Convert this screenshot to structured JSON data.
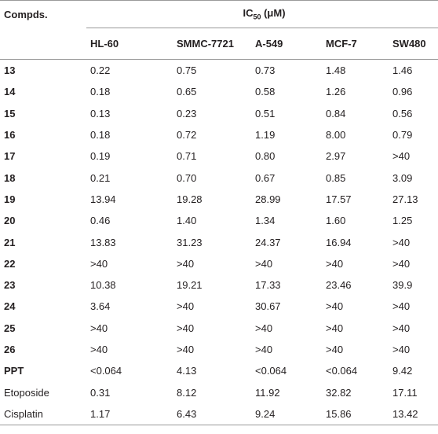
{
  "table": {
    "header": {
      "compounds": "Compds.",
      "ic50": {
        "prefix": "IC",
        "subscript": "50",
        "suffix": " (μM)"
      },
      "columns": [
        "HL-60",
        "SMMC-7721",
        "A-549",
        "MCF-7",
        "SW480"
      ]
    },
    "rows": [
      [
        "13",
        "0.22",
        "0.75",
        "0.73",
        "1.48",
        "1.46"
      ],
      [
        "14",
        "0.18",
        "0.65",
        "0.58",
        "1.26",
        "0.96"
      ],
      [
        "15",
        "0.13",
        "0.23",
        "0.51",
        "0.84",
        "0.56"
      ],
      [
        "16",
        "0.18",
        "0.72",
        "1.19",
        "8.00",
        "0.79"
      ],
      [
        "17",
        "0.19",
        "0.71",
        "0.80",
        "2.97",
        ">40"
      ],
      [
        "18",
        "0.21",
        "0.70",
        "0.67",
        "0.85",
        "3.09"
      ],
      [
        "19",
        "13.94",
        "19.28",
        "28.99",
        "17.57",
        "27.13"
      ],
      [
        "20",
        "0.46",
        "1.40",
        "1.34",
        "1.60",
        "1.25"
      ],
      [
        "21",
        "13.83",
        "31.23",
        "24.37",
        "16.94",
        ">40"
      ],
      [
        "22",
        ">40",
        ">40",
        ">40",
        ">40",
        ">40"
      ],
      [
        "23",
        "10.38",
        "19.21",
        "17.33",
        "23.46",
        "39.9"
      ],
      [
        "24",
        "3.64",
        ">40",
        "30.67",
        ">40",
        ">40"
      ],
      [
        "25",
        ">40",
        ">40",
        ">40",
        ">40",
        ">40"
      ],
      [
        "26",
        ">40",
        ">40",
        ">40",
        ">40",
        ">40"
      ],
      [
        "PPT",
        "<0.064",
        "4.13",
        "<0.064",
        "<0.064",
        "9.42"
      ],
      [
        "Etoposide",
        "0.31",
        "8.12",
        "11.92",
        "32.82",
        "17.11"
      ],
      [
        "Cisplatin",
        "1.17",
        "6.43",
        "9.24",
        "15.86",
        "13.42"
      ]
    ]
  }
}
